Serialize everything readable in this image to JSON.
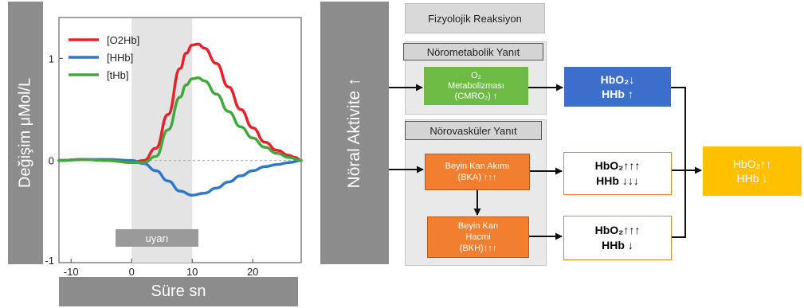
{
  "chart": {
    "ylabel": "Değişim μMol/L",
    "xlabel": "Süre sn",
    "stimulus_label": "uyarı"
  },
  "chart_data": {
    "type": "line",
    "xlabel": "Süre sn",
    "ylabel": "Değişim μMol/L",
    "xlim": [
      -12,
      28
    ],
    "ylim": [
      -1,
      1.4
    ],
    "xticks": [
      -10,
      0,
      10,
      20
    ],
    "yticks": [
      -1,
      0,
      1
    ],
    "yticks_shown": [
      "-1",
      "0",
      "1"
    ],
    "stimulus": {
      "start": 0,
      "end": 10,
      "label": "uyarı"
    },
    "legend_position": "top-left",
    "grid": false,
    "series": [
      {
        "name": "[O2Hb]",
        "color": "#e8202a",
        "points": [
          [
            -12,
            0
          ],
          [
            -8,
            0.01
          ],
          [
            -4,
            0
          ],
          [
            0,
            -0.02
          ],
          [
            2,
            0
          ],
          [
            4,
            0.12
          ],
          [
            6,
            0.45
          ],
          [
            8,
            0.9
          ],
          [
            9,
            1.05
          ],
          [
            10,
            1.13
          ],
          [
            11,
            1.14
          ],
          [
            12,
            1.1
          ],
          [
            14,
            0.95
          ],
          [
            16,
            0.72
          ],
          [
            18,
            0.5
          ],
          [
            20,
            0.32
          ],
          [
            22,
            0.18
          ],
          [
            24,
            0.1
          ],
          [
            26,
            0.05
          ],
          [
            27,
            0.03
          ],
          [
            28,
            0
          ]
        ]
      },
      {
        "name": "[HHb]",
        "color": "#2e77c9",
        "points": [
          [
            -12,
            0
          ],
          [
            -8,
            0.01
          ],
          [
            -4,
            0.01
          ],
          [
            0,
            0
          ],
          [
            2,
            -0.03
          ],
          [
            4,
            -0.1
          ],
          [
            6,
            -0.2
          ],
          [
            8,
            -0.3
          ],
          [
            10,
            -0.34
          ],
          [
            12,
            -0.32
          ],
          [
            14,
            -0.27
          ],
          [
            16,
            -0.21
          ],
          [
            18,
            -0.15
          ],
          [
            20,
            -0.1
          ],
          [
            22,
            -0.06
          ],
          [
            24,
            -0.04
          ],
          [
            26,
            -0.02
          ],
          [
            28,
            0
          ]
        ]
      },
      {
        "name": "[tHb]",
        "color": "#3fa83a",
        "points": [
          [
            -12,
            0
          ],
          [
            -8,
            0.01
          ],
          [
            -4,
            0
          ],
          [
            0,
            -0.02
          ],
          [
            2,
            -0.02
          ],
          [
            4,
            0.04
          ],
          [
            6,
            0.3
          ],
          [
            8,
            0.62
          ],
          [
            9,
            0.74
          ],
          [
            10,
            0.8
          ],
          [
            11,
            0.81
          ],
          [
            12,
            0.78
          ],
          [
            14,
            0.65
          ],
          [
            16,
            0.48
          ],
          [
            18,
            0.33
          ],
          [
            20,
            0.22
          ],
          [
            22,
            0.13
          ],
          [
            24,
            0.07
          ],
          [
            26,
            0.03
          ],
          [
            28,
            0
          ]
        ]
      }
    ]
  },
  "diagram": {
    "neural_activity": "Nöral Aktivite ↑",
    "physiological_reaction": "Fizyolojik Reaksiyon",
    "neurometabolic": {
      "header": "Nörometabolik Yanıt",
      "box_line1": "O₂",
      "box_line2": "Metabolizması",
      "box_line3": "(CMRO₂) ↑",
      "result_line1": "HbO₂↓",
      "result_line2": "HHb ↑"
    },
    "neurovascular": {
      "header": "Nörovasküler Yanıt",
      "flow_line1": "Beyin Kan Akımı",
      "flow_line2": "(BKA) ↑↑↑",
      "flow_result_line1": "HbO₂↑↑↑",
      "flow_result_line2": "HHb ↓↓↓",
      "volume_line1": "Beyin Kan",
      "volume_line2": "Hacmi",
      "volume_line3": "(BKH)↑↑↑",
      "volume_result_line1": "HbO₂↑↑↑",
      "volume_result_line2": "HHb ↓"
    },
    "final": {
      "line1": "HbO₂↑↑",
      "line2": "HHb ↓"
    },
    "colors": {
      "green": "#6dbb45",
      "blue": "#3c6fcc",
      "orange": "#f27e30",
      "yellow": "#ffc000",
      "gray_bar": "#8c8c8c"
    }
  }
}
